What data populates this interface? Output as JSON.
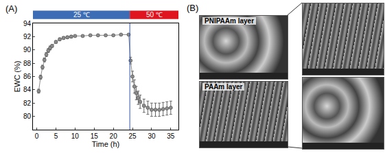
{
  "chart_data": {
    "type": "line",
    "panel_label": "(A)",
    "x_title": "Time (h)",
    "y_title": "EWC (%)",
    "x": [
      0.5,
      1,
      1.5,
      2,
      2.5,
      3,
      3.5,
      4,
      5,
      6,
      7,
      8,
      9,
      10,
      12,
      14,
      16,
      18,
      20,
      22,
      24,
      24.5,
      25,
      25.5,
      26,
      26.5,
      27,
      28,
      29,
      30,
      31,
      32,
      33,
      34,
      35
    ],
    "values": [
      83.8,
      85.9,
      87.4,
      88.5,
      89.3,
      89.9,
      90.3,
      90.6,
      91.2,
      91.6,
      91.8,
      91.9,
      92.0,
      92.1,
      92.1,
      92.2,
      92.2,
      92.2,
      92.2,
      92.3,
      92.3,
      88.4,
      86.0,
      84.5,
      83.5,
      82.8,
      82.2,
      81.6,
      81.3,
      81.0,
      81.0,
      81.0,
      81.1,
      81.2,
      81.3
    ],
    "errors": [
      0.3,
      0.3,
      0.3,
      0.3,
      0.3,
      0.3,
      0.3,
      0.2,
      0.2,
      0.2,
      0.2,
      0.2,
      0.2,
      0.1,
      0.1,
      0.1,
      0.1,
      0.1,
      0.1,
      0.1,
      0.1,
      0.5,
      0.8,
      1.0,
      1.0,
      1.0,
      1.0,
      1.0,
      1.0,
      1.0,
      1.0,
      1.0,
      1.0,
      1.0,
      1.0
    ],
    "color": "#8c8c8c",
    "marker": "circle",
    "line_style": "solid",
    "xlim": [
      -1,
      37
    ],
    "xticks": [
      0,
      5,
      10,
      15,
      20,
      25,
      30,
      35
    ],
    "ylim": [
      78,
      94
    ],
    "yticks": [
      80,
      82,
      84,
      86,
      88,
      90,
      92,
      94
    ],
    "grid": false,
    "divider_x": 24.3,
    "temperature_bands": [
      {
        "label": "25 ℃",
        "from": -1,
        "to": 24.3,
        "color": "#3d6db5"
      },
      {
        "label": "50 ℃",
        "from": 24.3,
        "to": 37,
        "color": "#e0141e"
      }
    ]
  },
  "panel_b": {
    "label": "(B)",
    "left_image_captions": [
      "PNIPAAm layer",
      "PAAm layer"
    ]
  }
}
